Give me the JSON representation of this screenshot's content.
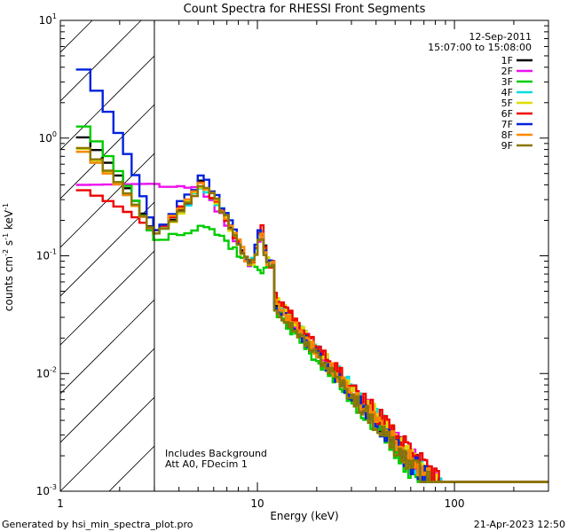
{
  "chart_data": {
    "type": "line",
    "title": "Count Spectra for RHESSI Front Segments",
    "xlabel": "Energy (keV)",
    "ylabel": {
      "base": "counts cm",
      "e1": "-2",
      "mid": " s",
      "e2": "-1",
      "mid2": " keV",
      "e3": "-1"
    },
    "xscale": "log",
    "yscale": "log",
    "xlim": [
      1,
      300
    ],
    "ylim": [
      0.001,
      10
    ],
    "x_ticks": [
      {
        "v": 1,
        "label": "1"
      },
      {
        "v": 10,
        "label": "10"
      },
      {
        "v": 100,
        "label": "100"
      }
    ],
    "y_ticks": [
      {
        "v": 10,
        "base": "10",
        "exp": "1"
      },
      {
        "v": 1,
        "base": "10",
        "exp": "0"
      },
      {
        "v": 0.1,
        "base": "10",
        "exp": "-1"
      },
      {
        "v": 0.01,
        "base": "10",
        "exp": "-2"
      },
      {
        "v": 0.001,
        "base": "10",
        "exp": "-3"
      }
    ],
    "excluded_region_max": 3,
    "date": "12-Sep-2011",
    "time_range": "15:07:00 to 15:08:00",
    "annotation_lines": [
      "Includes Background",
      "Att A0, FDecim 1"
    ],
    "series": [
      {
        "name": "1F",
        "color": "#000000",
        "start": 1.15,
        "dip": 0.15,
        "peak": 0.44,
        "line": 0.165,
        "fact": 1.0,
        "seed": 11
      },
      {
        "name": "2F",
        "color": "#ee11ee",
        "start": 0.4,
        "dip": 0.41,
        "peak": 0.36,
        "line": 0.15,
        "fact": 1.05,
        "seed": 23
      },
      {
        "name": "3F",
        "color": "#00cc00",
        "start": 1.45,
        "dip": 0.135,
        "peak": 0.19,
        "line": 0.075,
        "fact": 0.85,
        "seed": 37
      },
      {
        "name": "4F",
        "color": "#00dddd",
        "start": 0.85,
        "dip": 0.15,
        "peak": 0.41,
        "line": 0.16,
        "fact": 1.08,
        "seed": 41
      },
      {
        "name": "5F",
        "color": "#dddd00",
        "start": 0.9,
        "dip": 0.15,
        "peak": 0.42,
        "line": 0.16,
        "fact": 1.12,
        "seed": 53
      },
      {
        "name": "6F",
        "color": "#ee0000",
        "start": 0.38,
        "dip": 0.16,
        "peak": 0.43,
        "line": 0.18,
        "fact": 1.15,
        "seed": 67
      },
      {
        "name": "7F",
        "color": "#0022dd",
        "start": 4.7,
        "dip": 0.16,
        "peak": 0.5,
        "line": 0.17,
        "fact": 0.95,
        "seed": 79
      },
      {
        "name": "8F",
        "color": "#ff8800",
        "start": 0.85,
        "dip": 0.15,
        "peak": 0.43,
        "line": 0.15,
        "fact": 1.0,
        "seed": 83
      },
      {
        "name": "9F",
        "color": "#887700",
        "start": 0.92,
        "dip": 0.15,
        "peak": 0.44,
        "line": 0.14,
        "fact": 0.92,
        "seed": 97
      }
    ]
  },
  "footer": {
    "left": "Generated by hsi_min_spectra_plot.pro",
    "right": "21-Apr-2023 12:50"
  }
}
